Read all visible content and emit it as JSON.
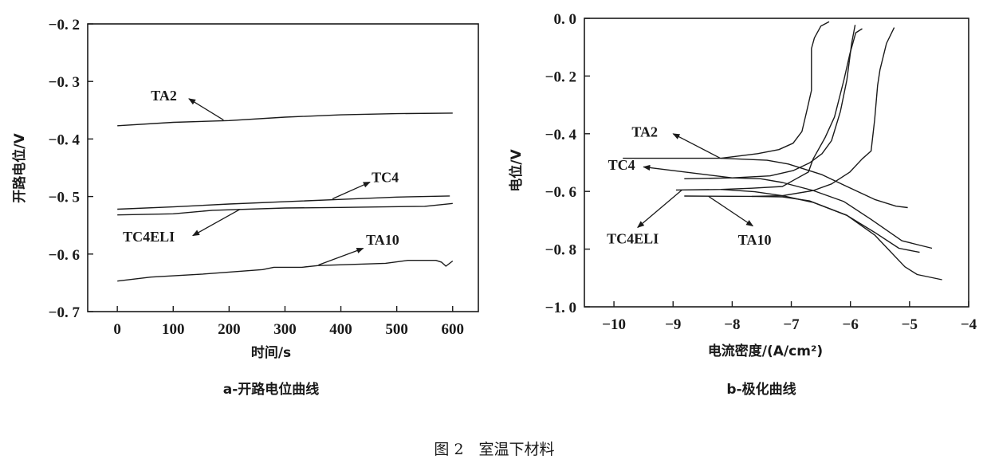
{
  "figure_caption": "图 2　室温下材料",
  "chart_data": [
    {
      "type": "line",
      "caption": "a-开路电位曲线",
      "xlabel": "时间/s",
      "ylabel": "开路电位/V",
      "xlim": [
        -53,
        646
      ],
      "ylim": [
        -0.7,
        -0.2
      ],
      "xticks": [
        0,
        100,
        200,
        300,
        400,
        500,
        600
      ],
      "xtick_labels": [
        "0",
        "100",
        "200",
        "300",
        "400",
        "500",
        "600"
      ],
      "yticks": [
        -0.2,
        -0.3,
        -0.4,
        -0.5,
        -0.6,
        -0.7
      ],
      "ytick_labels": [
        "−0. 2",
        "−0. 3",
        "−0. 4",
        "−0. 5",
        "−0. 6",
        "−0. 7"
      ],
      "grid": false,
      "line_color": "#1a1a1a",
      "series": [
        {
          "name": "TA2",
          "points": [
            [
              0,
              -0.377
            ],
            [
              100,
              -0.371
            ],
            [
              200,
              -0.368
            ],
            [
              300,
              -0.362
            ],
            [
              400,
              -0.358
            ],
            [
              500,
              -0.356
            ],
            [
              600,
              -0.355
            ]
          ]
        },
        {
          "name": "TC4",
          "points": [
            [
              0,
              -0.522
            ],
            [
              100,
              -0.518
            ],
            [
              200,
              -0.513
            ],
            [
              300,
              -0.509
            ],
            [
              400,
              -0.505
            ],
            [
              500,
              -0.501
            ],
            [
              595,
              -0.499
            ]
          ]
        },
        {
          "name": "TC4ELI",
          "points": [
            [
              0,
              -0.532
            ],
            [
              100,
              -0.53
            ],
            [
              170,
              -0.524
            ],
            [
              300,
              -0.52
            ],
            [
              400,
              -0.519
            ],
            [
              550,
              -0.517
            ],
            [
              600,
              -0.512
            ]
          ]
        },
        {
          "name": "TA10",
          "points": [
            [
              0,
              -0.647
            ],
            [
              60,
              -0.64
            ],
            [
              150,
              -0.635
            ],
            [
              260,
              -0.627
            ],
            [
              280,
              -0.623
            ],
            [
              330,
              -0.623
            ],
            [
              360,
              -0.62
            ],
            [
              480,
              -0.616
            ],
            [
              520,
              -0.611
            ],
            [
              570,
              -0.611
            ],
            [
              580,
              -0.614
            ],
            [
              588,
              -0.621
            ],
            [
              600,
              -0.612
            ]
          ]
        }
      ],
      "annotations": [
        {
          "text": "TA2",
          "at": [
            60,
            -0.333
          ],
          "arrow_from": [
            190,
            -0.367
          ],
          "arrow_to": [
            128,
            -0.33
          ]
        },
        {
          "text": "TC4",
          "at": [
            455,
            -0.475
          ],
          "arrow_from": [
            385,
            -0.504
          ],
          "arrow_to": [
            452,
            -0.475
          ]
        },
        {
          "text": "TC4ELI",
          "at": [
            10,
            -0.578
          ],
          "arrow_from": [
            220,
            -0.522
          ],
          "arrow_to": [
            135,
            -0.568
          ]
        },
        {
          "text": "TA10",
          "at": [
            445,
            -0.584
          ],
          "arrow_from": [
            360,
            -0.619
          ],
          "arrow_to": [
            440,
            -0.59
          ]
        }
      ]
    },
    {
      "type": "line",
      "caption": "b-极化曲线",
      "xlabel": "电流密度/(A/cm²)",
      "ylabel": "电位/V",
      "xlim": [
        -10.5,
        -4
      ],
      "ylim": [
        -1.0,
        0.0
      ],
      "xticks": [
        -10,
        -9,
        -8,
        -7,
        -6,
        -5,
        -4
      ],
      "xtick_labels": [
        "−10",
        "−9",
        "−8",
        "−7",
        "−6",
        "−5",
        "−4"
      ],
      "yticks": [
        0.0,
        -0.2,
        -0.4,
        -0.6,
        -0.8,
        -1.0
      ],
      "ytick_labels": [
        "0. 0",
        "−0. 2",
        "−0. 4",
        "−0. 6",
        "−0. 8",
        "−1. 0"
      ],
      "grid": false,
      "line_color": "#1a1a1a",
      "series": [
        {
          "name": "TA2",
          "points": [
            [
              -9.85,
              -0.485
            ],
            [
              -8.19,
              -0.485
            ],
            [
              -7.57,
              -0.469
            ],
            [
              -7.21,
              -0.455
            ],
            [
              -6.97,
              -0.433
            ],
            [
              -6.82,
              -0.392
            ],
            [
              -6.74,
              -0.323
            ],
            [
              -6.66,
              -0.25
            ],
            [
              -6.66,
              -0.105
            ],
            [
              -6.61,
              -0.068
            ],
            [
              -6.5,
              -0.027
            ],
            [
              -6.36,
              -0.012
            ]
          ],
          "cathodic": [
            [
              -8.19,
              -0.485
            ],
            [
              -7.41,
              -0.492
            ],
            [
              -7.05,
              -0.505
            ],
            [
              -6.48,
              -0.542
            ],
            [
              -6.11,
              -0.578
            ],
            [
              -5.59,
              -0.628
            ],
            [
              -5.23,
              -0.651
            ],
            [
              -5.03,
              -0.656
            ]
          ]
        },
        {
          "name": "TC4",
          "points": [
            [
              -8.81,
              -0.556
            ],
            [
              -8.0,
              -0.553
            ],
            [
              -7.36,
              -0.546
            ],
            [
              -6.97,
              -0.528
            ],
            [
              -6.69,
              -0.501
            ],
            [
              -6.48,
              -0.469
            ],
            [
              -6.32,
              -0.424
            ],
            [
              -6.17,
              -0.323
            ],
            [
              -6.06,
              -0.214
            ],
            [
              -5.98,
              -0.087
            ],
            [
              -5.92,
              -0.023
            ]
          ],
          "cathodic": [
            [
              -8.0,
              -0.553
            ],
            [
              -7.52,
              -0.556
            ],
            [
              -7.15,
              -0.569
            ],
            [
              -6.63,
              -0.597
            ],
            [
              -6.11,
              -0.635
            ],
            [
              -5.65,
              -0.697
            ],
            [
              -5.13,
              -0.771
            ],
            [
              -4.62,
              -0.797
            ]
          ]
        },
        {
          "name": "TC4ELI",
          "points": [
            [
              -8.95,
              -0.595
            ],
            [
              -8.19,
              -0.593
            ],
            [
              -7.67,
              -0.589
            ],
            [
              -7.15,
              -0.583
            ],
            [
              -6.95,
              -0.56
            ],
            [
              -6.71,
              -0.533
            ],
            [
              -6.63,
              -0.487
            ],
            [
              -6.43,
              -0.414
            ],
            [
              -6.27,
              -0.342
            ],
            [
              -6.11,
              -0.214
            ],
            [
              -6.01,
              -0.123
            ],
            [
              -5.91,
              -0.05
            ],
            [
              -5.8,
              -0.036
            ]
          ],
          "cathodic": [
            [
              -8.19,
              -0.593
            ],
            [
              -7.62,
              -0.601
            ],
            [
              -7.15,
              -0.615
            ],
            [
              -6.63,
              -0.638
            ],
            [
              -6.06,
              -0.683
            ],
            [
              -5.59,
              -0.742
            ],
            [
              -5.18,
              -0.797
            ],
            [
              -4.83,
              -0.811
            ]
          ]
        },
        {
          "name": "TA10",
          "points": [
            [
              -8.81,
              -0.616
            ],
            [
              -7.67,
              -0.617
            ],
            [
              -7.15,
              -0.615
            ],
            [
              -6.63,
              -0.597
            ],
            [
              -6.32,
              -0.574
            ],
            [
              -6.01,
              -0.533
            ],
            [
              -5.8,
              -0.487
            ],
            [
              -5.65,
              -0.46
            ],
            [
              -5.59,
              -0.351
            ],
            [
              -5.54,
              -0.232
            ],
            [
              -5.5,
              -0.178
            ],
            [
              -5.39,
              -0.087
            ],
            [
              -5.26,
              -0.032
            ]
          ],
          "cathodic": [
            [
              -7.67,
              -0.617
            ],
            [
              -7.15,
              -0.619
            ],
            [
              -6.69,
              -0.633
            ],
            [
              -6.06,
              -0.683
            ],
            [
              -5.59,
              -0.751
            ],
            [
              -5.08,
              -0.861
            ],
            [
              -4.87,
              -0.888
            ],
            [
              -4.45,
              -0.906
            ]
          ]
        }
      ],
      "annotations": [
        {
          "text": "TA2",
          "at": [
            -9.7,
            -0.41
          ],
          "arrow_from": [
            -8.2,
            -0.485
          ],
          "arrow_to": [
            -9.0,
            -0.4
          ]
        },
        {
          "text": "TC4",
          "at": [
            -10.1,
            -0.525
          ],
          "arrow_from": [
            -8.0,
            -0.553
          ],
          "arrow_to": [
            -9.5,
            -0.515
          ]
        },
        {
          "text": "TC4ELI",
          "at": [
            -10.12,
            -0.78
          ],
          "arrow_from": [
            -8.85,
            -0.595
          ],
          "arrow_to": [
            -9.6,
            -0.725
          ]
        },
        {
          "text": "TA10",
          "at": [
            -7.9,
            -0.785
          ],
          "arrow_from": [
            -8.4,
            -0.617
          ],
          "arrow_to": [
            -7.65,
            -0.72
          ]
        }
      ]
    }
  ]
}
